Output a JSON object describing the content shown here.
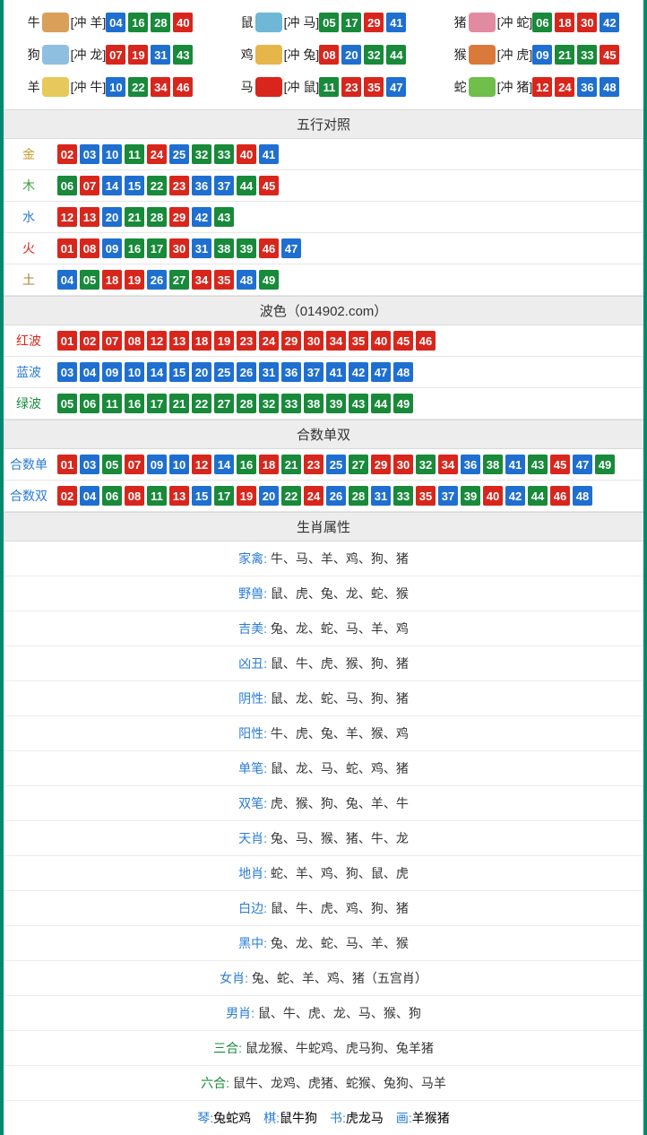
{
  "colors": {
    "red": "#d9261c",
    "blue": "#1f6fd0",
    "green": "#188a3a",
    "border": "#008a6c",
    "header_bg": "#ededed"
  },
  "zodiac": [
    {
      "name": "牛",
      "clash": "[冲 羊]",
      "icon_color": "#d9a05a",
      "balls": [
        {
          "n": "04",
          "c": "blue"
        },
        {
          "n": "16",
          "c": "green"
        },
        {
          "n": "28",
          "c": "green"
        },
        {
          "n": "40",
          "c": "red"
        }
      ]
    },
    {
      "name": "鼠",
      "clash": "[冲 马]",
      "icon_color": "#6fb7d6",
      "balls": [
        {
          "n": "05",
          "c": "green"
        },
        {
          "n": "17",
          "c": "green"
        },
        {
          "n": "29",
          "c": "red"
        },
        {
          "n": "41",
          "c": "blue"
        }
      ]
    },
    {
      "name": "猪",
      "clash": "[冲 蛇]",
      "icon_color": "#e28aa0",
      "balls": [
        {
          "n": "06",
          "c": "green"
        },
        {
          "n": "18",
          "c": "red"
        },
        {
          "n": "30",
          "c": "red"
        },
        {
          "n": "42",
          "c": "blue"
        }
      ]
    },
    {
      "name": "狗",
      "clash": "[冲 龙]",
      "icon_color": "#8fbfe0",
      "balls": [
        {
          "n": "07",
          "c": "red"
        },
        {
          "n": "19",
          "c": "red"
        },
        {
          "n": "31",
          "c": "blue"
        },
        {
          "n": "43",
          "c": "green"
        }
      ]
    },
    {
      "name": "鸡",
      "clash": "[冲 兔]",
      "icon_color": "#e6b64a",
      "balls": [
        {
          "n": "08",
          "c": "red"
        },
        {
          "n": "20",
          "c": "blue"
        },
        {
          "n": "32",
          "c": "green"
        },
        {
          "n": "44",
          "c": "green"
        }
      ]
    },
    {
      "name": "猴",
      "clash": "[冲 虎]",
      "icon_color": "#d97a3a",
      "balls": [
        {
          "n": "09",
          "c": "blue"
        },
        {
          "n": "21",
          "c": "green"
        },
        {
          "n": "33",
          "c": "green"
        },
        {
          "n": "45",
          "c": "red"
        }
      ]
    },
    {
      "name": "羊",
      "clash": "[冲 牛]",
      "icon_color": "#e6c95a",
      "balls": [
        {
          "n": "10",
          "c": "blue"
        },
        {
          "n": "22",
          "c": "green"
        },
        {
          "n": "34",
          "c": "red"
        },
        {
          "n": "46",
          "c": "red"
        }
      ]
    },
    {
      "name": "马",
      "clash": "[冲 鼠]",
      "icon_color": "#d9261c",
      "balls": [
        {
          "n": "11",
          "c": "green"
        },
        {
          "n": "23",
          "c": "red"
        },
        {
          "n": "35",
          "c": "red"
        },
        {
          "n": "47",
          "c": "blue"
        }
      ]
    },
    {
      "name": "蛇",
      "clash": "[冲 猪]",
      "icon_color": "#6fbf4a",
      "balls": [
        {
          "n": "12",
          "c": "red"
        },
        {
          "n": "24",
          "c": "red"
        },
        {
          "n": "36",
          "c": "blue"
        },
        {
          "n": "48",
          "c": "blue"
        }
      ]
    }
  ],
  "wuxing_header": "五行对照",
  "wuxing": [
    {
      "label": "金",
      "class": "lbl-gold",
      "balls": [
        {
          "n": "02",
          "c": "red"
        },
        {
          "n": "03",
          "c": "blue"
        },
        {
          "n": "10",
          "c": "blue"
        },
        {
          "n": "11",
          "c": "green"
        },
        {
          "n": "24",
          "c": "red"
        },
        {
          "n": "25",
          "c": "blue"
        },
        {
          "n": "32",
          "c": "green"
        },
        {
          "n": "33",
          "c": "green"
        },
        {
          "n": "40",
          "c": "red"
        },
        {
          "n": "41",
          "c": "blue"
        }
      ]
    },
    {
      "label": "木",
      "class": "lbl-wood",
      "balls": [
        {
          "n": "06",
          "c": "green"
        },
        {
          "n": "07",
          "c": "red"
        },
        {
          "n": "14",
          "c": "blue"
        },
        {
          "n": "15",
          "c": "blue"
        },
        {
          "n": "22",
          "c": "green"
        },
        {
          "n": "23",
          "c": "red"
        },
        {
          "n": "36",
          "c": "blue"
        },
        {
          "n": "37",
          "c": "blue"
        },
        {
          "n": "44",
          "c": "green"
        },
        {
          "n": "45",
          "c": "red"
        }
      ]
    },
    {
      "label": "水",
      "class": "lbl-water",
      "balls": [
        {
          "n": "12",
          "c": "red"
        },
        {
          "n": "13",
          "c": "red"
        },
        {
          "n": "20",
          "c": "blue"
        },
        {
          "n": "21",
          "c": "green"
        },
        {
          "n": "28",
          "c": "green"
        },
        {
          "n": "29",
          "c": "red"
        },
        {
          "n": "42",
          "c": "blue"
        },
        {
          "n": "43",
          "c": "green"
        }
      ]
    },
    {
      "label": "火",
      "class": "lbl-fire",
      "balls": [
        {
          "n": "01",
          "c": "red"
        },
        {
          "n": "08",
          "c": "red"
        },
        {
          "n": "09",
          "c": "blue"
        },
        {
          "n": "16",
          "c": "green"
        },
        {
          "n": "17",
          "c": "green"
        },
        {
          "n": "30",
          "c": "red"
        },
        {
          "n": "31",
          "c": "blue"
        },
        {
          "n": "38",
          "c": "green"
        },
        {
          "n": "39",
          "c": "green"
        },
        {
          "n": "46",
          "c": "red"
        },
        {
          "n": "47",
          "c": "blue"
        }
      ]
    },
    {
      "label": "土",
      "class": "lbl-earth",
      "balls": [
        {
          "n": "04",
          "c": "blue"
        },
        {
          "n": "05",
          "c": "green"
        },
        {
          "n": "18",
          "c": "red"
        },
        {
          "n": "19",
          "c": "red"
        },
        {
          "n": "26",
          "c": "blue"
        },
        {
          "n": "27",
          "c": "green"
        },
        {
          "n": "34",
          "c": "red"
        },
        {
          "n": "35",
          "c": "red"
        },
        {
          "n": "48",
          "c": "blue"
        },
        {
          "n": "49",
          "c": "green"
        }
      ]
    }
  ],
  "bose_header": "波色（014902.com）",
  "bose": [
    {
      "label": "红波",
      "class": "lbl-red",
      "balls": [
        {
          "n": "01",
          "c": "red"
        },
        {
          "n": "02",
          "c": "red"
        },
        {
          "n": "07",
          "c": "red"
        },
        {
          "n": "08",
          "c": "red"
        },
        {
          "n": "12",
          "c": "red"
        },
        {
          "n": "13",
          "c": "red"
        },
        {
          "n": "18",
          "c": "red"
        },
        {
          "n": "19",
          "c": "red"
        },
        {
          "n": "23",
          "c": "red"
        },
        {
          "n": "24",
          "c": "red"
        },
        {
          "n": "29",
          "c": "red"
        },
        {
          "n": "30",
          "c": "red"
        },
        {
          "n": "34",
          "c": "red"
        },
        {
          "n": "35",
          "c": "red"
        },
        {
          "n": "40",
          "c": "red"
        },
        {
          "n": "45",
          "c": "red"
        },
        {
          "n": "46",
          "c": "red"
        }
      ]
    },
    {
      "label": "蓝波",
      "class": "lbl-blue",
      "balls": [
        {
          "n": "03",
          "c": "blue"
        },
        {
          "n": "04",
          "c": "blue"
        },
        {
          "n": "09",
          "c": "blue"
        },
        {
          "n": "10",
          "c": "blue"
        },
        {
          "n": "14",
          "c": "blue"
        },
        {
          "n": "15",
          "c": "blue"
        },
        {
          "n": "20",
          "c": "blue"
        },
        {
          "n": "25",
          "c": "blue"
        },
        {
          "n": "26",
          "c": "blue"
        },
        {
          "n": "31",
          "c": "blue"
        },
        {
          "n": "36",
          "c": "blue"
        },
        {
          "n": "37",
          "c": "blue"
        },
        {
          "n": "41",
          "c": "blue"
        },
        {
          "n": "42",
          "c": "blue"
        },
        {
          "n": "47",
          "c": "blue"
        },
        {
          "n": "48",
          "c": "blue"
        }
      ]
    },
    {
      "label": "绿波",
      "class": "lbl-green",
      "balls": [
        {
          "n": "05",
          "c": "green"
        },
        {
          "n": "06",
          "c": "green"
        },
        {
          "n": "11",
          "c": "green"
        },
        {
          "n": "16",
          "c": "green"
        },
        {
          "n": "17",
          "c": "green"
        },
        {
          "n": "21",
          "c": "green"
        },
        {
          "n": "22",
          "c": "green"
        },
        {
          "n": "27",
          "c": "green"
        },
        {
          "n": "28",
          "c": "green"
        },
        {
          "n": "32",
          "c": "green"
        },
        {
          "n": "33",
          "c": "green"
        },
        {
          "n": "38",
          "c": "green"
        },
        {
          "n": "39",
          "c": "green"
        },
        {
          "n": "43",
          "c": "green"
        },
        {
          "n": "44",
          "c": "green"
        },
        {
          "n": "49",
          "c": "green"
        }
      ]
    }
  ],
  "heshu_header": "合数单双",
  "heshu": [
    {
      "label": "合数单",
      "class": "lbl-blue",
      "balls": [
        {
          "n": "01",
          "c": "red"
        },
        {
          "n": "03",
          "c": "blue"
        },
        {
          "n": "05",
          "c": "green"
        },
        {
          "n": "07",
          "c": "red"
        },
        {
          "n": "09",
          "c": "blue"
        },
        {
          "n": "10",
          "c": "blue"
        },
        {
          "n": "12",
          "c": "red"
        },
        {
          "n": "14",
          "c": "blue"
        },
        {
          "n": "16",
          "c": "green"
        },
        {
          "n": "18",
          "c": "red"
        },
        {
          "n": "21",
          "c": "green"
        },
        {
          "n": "23",
          "c": "red"
        },
        {
          "n": "25",
          "c": "blue"
        },
        {
          "n": "27",
          "c": "green"
        },
        {
          "n": "29",
          "c": "red"
        },
        {
          "n": "30",
          "c": "red"
        },
        {
          "n": "32",
          "c": "green"
        },
        {
          "n": "34",
          "c": "red"
        },
        {
          "n": "36",
          "c": "blue"
        },
        {
          "n": "38",
          "c": "green"
        },
        {
          "n": "41",
          "c": "blue"
        },
        {
          "n": "43",
          "c": "green"
        },
        {
          "n": "45",
          "c": "red"
        },
        {
          "n": "47",
          "c": "blue"
        },
        {
          "n": "49",
          "c": "green"
        }
      ]
    },
    {
      "label": "合数双",
      "class": "lbl-blue",
      "balls": [
        {
          "n": "02",
          "c": "red"
        },
        {
          "n": "04",
          "c": "blue"
        },
        {
          "n": "06",
          "c": "green"
        },
        {
          "n": "08",
          "c": "red"
        },
        {
          "n": "11",
          "c": "green"
        },
        {
          "n": "13",
          "c": "red"
        },
        {
          "n": "15",
          "c": "blue"
        },
        {
          "n": "17",
          "c": "green"
        },
        {
          "n": "19",
          "c": "red"
        },
        {
          "n": "20",
          "c": "blue"
        },
        {
          "n": "22",
          "c": "green"
        },
        {
          "n": "24",
          "c": "red"
        },
        {
          "n": "26",
          "c": "blue"
        },
        {
          "n": "28",
          "c": "green"
        },
        {
          "n": "31",
          "c": "blue"
        },
        {
          "n": "33",
          "c": "green"
        },
        {
          "n": "35",
          "c": "red"
        },
        {
          "n": "37",
          "c": "blue"
        },
        {
          "n": "39",
          "c": "green"
        },
        {
          "n": "40",
          "c": "red"
        },
        {
          "n": "42",
          "c": "blue"
        },
        {
          "n": "44",
          "c": "green"
        },
        {
          "n": "46",
          "c": "red"
        },
        {
          "n": "48",
          "c": "blue"
        }
      ]
    }
  ],
  "attr_header": "生肖属性",
  "attributes": [
    {
      "key": "家禽",
      "cls": "",
      "val": "牛、马、羊、鸡、狗、猪"
    },
    {
      "key": "野兽",
      "cls": "",
      "val": "鼠、虎、兔、龙、蛇、猴"
    },
    {
      "key": "吉美",
      "cls": "",
      "val": "兔、龙、蛇、马、羊、鸡"
    },
    {
      "key": "凶丑",
      "cls": "",
      "val": "鼠、牛、虎、猴、狗、猪"
    },
    {
      "key": "阴性",
      "cls": "",
      "val": "鼠、龙、蛇、马、狗、猪"
    },
    {
      "key": "阳性",
      "cls": "",
      "val": "牛、虎、兔、羊、猴、鸡"
    },
    {
      "key": "单笔",
      "cls": "",
      "val": "鼠、龙、马、蛇、鸡、猪"
    },
    {
      "key": "双笔",
      "cls": "",
      "val": "虎、猴、狗、兔、羊、牛"
    },
    {
      "key": "天肖",
      "cls": "",
      "val": "兔、马、猴、猪、牛、龙"
    },
    {
      "key": "地肖",
      "cls": "",
      "val": "蛇、羊、鸡、狗、鼠、虎"
    },
    {
      "key": "白边",
      "cls": "",
      "val": "鼠、牛、虎、鸡、狗、猪"
    },
    {
      "key": "黑中",
      "cls": "",
      "val": "兔、龙、蛇、马、羊、猴"
    },
    {
      "key": "女肖",
      "cls": "",
      "val": "兔、蛇、羊、鸡、猪（五宫肖）"
    },
    {
      "key": "男肖",
      "cls": "",
      "val": "鼠、牛、虎、龙、马、猴、狗"
    },
    {
      "key": "三合",
      "cls": "green",
      "val": "鼠龙猴、牛蛇鸡、虎马狗、兔羊猪"
    },
    {
      "key": "六合",
      "cls": "green",
      "val": "鼠牛、龙鸡、虎猪、蛇猴、兔狗、马羊"
    }
  ],
  "bottom": [
    {
      "k": "琴",
      "v": "兔蛇鸡"
    },
    {
      "k": "棋",
      "v": "鼠牛狗"
    },
    {
      "k": "书",
      "v": "虎龙马"
    },
    {
      "k": "画",
      "v": "羊猴猪"
    }
  ]
}
